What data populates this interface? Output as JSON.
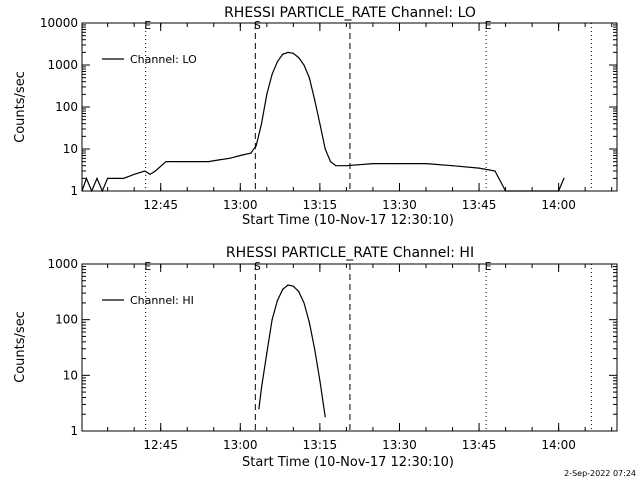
{
  "chart_data": [
    {
      "type": "line",
      "title": "RHESSI PARTICLE_RATE Channel: LO",
      "xlabel": "Start Time (10-Nov-17 12:30:10)",
      "ylabel": "Counts/sec",
      "yscale": "log",
      "xlim": [
        "12:30:10",
        "14:11:00"
      ],
      "ylim": [
        1,
        10000
      ],
      "xticks": [
        "12:45",
        "13:00",
        "13:15",
        "13:30",
        "13:45",
        "14:00"
      ],
      "yticks": [
        "1",
        "10",
        "100",
        "1000",
        "10000"
      ],
      "legend": {
        "placement": "top-left",
        "entries": [
          "Channel: LO"
        ]
      },
      "markers": [
        {
          "label": "E",
          "time": "12:42:10",
          "style": "dotted"
        },
        {
          "label": "S",
          "time": "13:02:50",
          "style": "dashed"
        },
        {
          "label": "",
          "time": "13:20:40",
          "style": "dashed"
        },
        {
          "label": "E",
          "time": "13:46:20",
          "style": "dotted"
        },
        {
          "label": "",
          "time": "14:06:10",
          "style": "dotted"
        }
      ],
      "series": [
        {
          "name": "Channel: LO",
          "x": [
            "12:30:10",
            "12:31:00",
            "12:32:00",
            "12:33:00",
            "12:34:00",
            "12:35:00",
            "12:36:00",
            "12:38:00",
            "12:40:00",
            "12:42:00",
            "12:43:00",
            "12:44:00",
            "12:46:00",
            "12:48:00",
            "12:50:00",
            "12:52:00",
            "12:54:00",
            "12:56:00",
            "12:58:00",
            "13:00:00",
            "13:02:00",
            "13:03:00",
            "13:04:00",
            "13:05:00",
            "13:06:00",
            "13:07:00",
            "13:08:00",
            "13:09:00",
            "13:10:00",
            "13:11:00",
            "13:12:00",
            "13:13:00",
            "13:14:00",
            "13:15:00",
            "13:16:00",
            "13:17:00",
            "13:18:00",
            "13:20:00",
            "13:25:00",
            "13:30:00",
            "13:35:00",
            "13:40:00",
            "13:45:00",
            "13:48:00",
            "13:50:00",
            "13:55:00",
            "14:00:00",
            "14:01:00"
          ],
          "y": [
            1,
            2,
            1,
            2,
            1,
            2,
            2,
            2,
            2.5,
            3,
            2.5,
            3,
            5,
            5,
            5,
            5,
            5,
            5.5,
            6,
            7,
            8,
            12,
            40,
            200,
            600,
            1200,
            1800,
            2000,
            1900,
            1500,
            1000,
            500,
            150,
            40,
            10,
            5,
            4,
            4,
            4.5,
            4.5,
            4.5,
            4,
            3.5,
            3,
            1,
            1,
            1,
            2
          ]
        }
      ]
    },
    {
      "type": "line",
      "title": "RHESSI PARTICLE_RATE Channel: HI",
      "xlabel": "Start Time (10-Nov-17 12:30:10)",
      "ylabel": "Counts/sec",
      "yscale": "log",
      "xlim": [
        "12:30:10",
        "14:11:00"
      ],
      "ylim": [
        1,
        1000
      ],
      "xticks": [
        "12:45",
        "13:00",
        "13:15",
        "13:30",
        "13:45",
        "14:00"
      ],
      "yticks": [
        "1",
        "10",
        "100",
        "1000"
      ],
      "legend": {
        "placement": "top-left",
        "entries": [
          "Channel: HI"
        ]
      },
      "markers": [
        {
          "label": "E",
          "time": "12:42:10",
          "style": "dotted"
        },
        {
          "label": "S",
          "time": "13:02:50",
          "style": "dashed"
        },
        {
          "label": "",
          "time": "13:20:40",
          "style": "dashed"
        },
        {
          "label": "E",
          "time": "13:46:20",
          "style": "dotted"
        },
        {
          "label": "",
          "time": "14:06:10",
          "style": "dotted"
        }
      ],
      "series": [
        {
          "name": "Channel: HI",
          "x": [
            "13:03:30",
            "13:04:00",
            "13:05:00",
            "13:06:00",
            "13:07:00",
            "13:08:00",
            "13:09:00",
            "13:10:00",
            "13:11:00",
            "13:12:00",
            "13:13:00",
            "13:14:00",
            "13:15:00",
            "13:16:00"
          ],
          "y": [
            2.5,
            6,
            25,
            100,
            220,
            350,
            420,
            400,
            320,
            200,
            90,
            30,
            8,
            1.8
          ]
        }
      ]
    }
  ],
  "footer": {
    "timestamp": "2-Sep-2022 07:24"
  }
}
